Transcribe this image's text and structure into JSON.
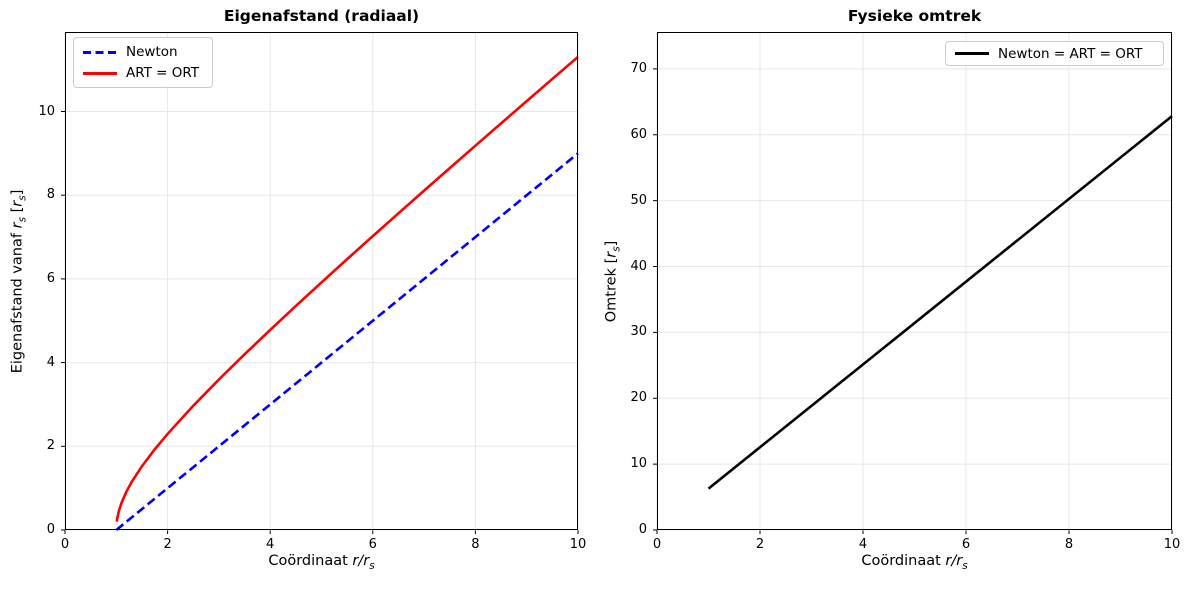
{
  "figure": {
    "background": "#ffffff",
    "spine_color": "#000000",
    "grid_color": "#e8e8e8",
    "line_width": 2.6
  },
  "chart_data": [
    {
      "type": "line",
      "title": "Eigenafstand (radiaal)",
      "xlabel": "Coördinaat r/rs",
      "ylabel": "Eigenafstand vanaf rs [rs]",
      "xlabel_rich": [
        {
          "t": "Coördinaat ",
          "s": "plain"
        },
        {
          "t": "r/r",
          "s": "italic"
        },
        {
          "t": "s",
          "s": "sub"
        }
      ],
      "ylabel_rich": [
        {
          "t": "Eigenafstand vanaf ",
          "s": "plain"
        },
        {
          "t": "r",
          "s": "italic"
        },
        {
          "t": "s",
          "s": "sub"
        },
        {
          "t": " [",
          "s": "plain"
        },
        {
          "t": "r",
          "s": "italic"
        },
        {
          "t": "s",
          "s": "sub"
        },
        {
          "t": "]",
          "s": "plain"
        }
      ],
      "xlim": [
        0,
        10
      ],
      "ylim": [
        0,
        11.9
      ],
      "xticks": [
        0,
        2,
        4,
        6,
        8,
        10
      ],
      "yticks": [
        0,
        2,
        4,
        6,
        8,
        10
      ],
      "grid": true,
      "legend": {
        "position": "upper-left",
        "entries": [
          {
            "label": "Newton",
            "color": "#0000ff",
            "dash": true
          },
          {
            "label": "ART = ORT",
            "color": "#ff0000",
            "dash": false
          }
        ]
      },
      "series": [
        {
          "name": "Newton",
          "color": "#0000ff",
          "dash": true,
          "points": [
            [
              1,
              0
            ],
            [
              10,
              9
            ]
          ]
        },
        {
          "name": "ART = ORT",
          "color": "#ff0000",
          "dash": false,
          "points": [
            [
              1.01,
              0.2
            ],
            [
              1.02,
              0.284
            ],
            [
              1.05,
              0.451
            ],
            [
              1.1,
              0.643
            ],
            [
              1.2,
              0.924
            ],
            [
              1.3,
              1.148
            ],
            [
              1.5,
              1.524
            ],
            [
              1.75,
              1.929
            ],
            [
              2,
              2.296
            ],
            [
              2.5,
              2.968
            ],
            [
              3,
              3.596
            ],
            [
              3.5,
              4.197
            ],
            [
              4,
              4.781
            ],
            [
              4.5,
              5.353
            ],
            [
              5,
              5.916
            ],
            [
              5.5,
              6.472
            ],
            [
              6,
              7.022
            ],
            [
              6.5,
              7.567
            ],
            [
              7,
              8.109
            ],
            [
              7.5,
              8.648
            ],
            [
              8,
              9.183
            ],
            [
              8.5,
              9.717
            ],
            [
              9,
              10.248
            ],
            [
              9.5,
              10.778
            ],
            [
              10,
              11.305
            ]
          ]
        }
      ]
    },
    {
      "type": "line",
      "title": "Fysieke omtrek",
      "xlabel": "Coördinaat r/rs",
      "ylabel": "Omtrek [rs]",
      "xlabel_rich": [
        {
          "t": "Coördinaat ",
          "s": "plain"
        },
        {
          "t": "r/r",
          "s": "italic"
        },
        {
          "t": "s",
          "s": "sub"
        }
      ],
      "ylabel_rich": [
        {
          "t": "Omtrek [",
          "s": "plain"
        },
        {
          "t": "r",
          "s": "italic"
        },
        {
          "t": "s",
          "s": "sub"
        },
        {
          "t": "]",
          "s": "plain"
        }
      ],
      "xlim": [
        0,
        10
      ],
      "ylim": [
        0,
        75.6
      ],
      "xticks": [
        0,
        2,
        4,
        6,
        8,
        10
      ],
      "yticks": [
        0,
        10,
        20,
        30,
        40,
        50,
        60,
        70
      ],
      "grid": true,
      "legend": {
        "position": "upper-right",
        "entries": [
          {
            "label": "Newton = ART = ORT",
            "color": "#000000",
            "dash": false
          }
        ]
      },
      "series": [
        {
          "name": "Newton = ART = ORT",
          "color": "#000000",
          "dash": false,
          "points": [
            [
              1,
              6.283
            ],
            [
              10,
              62.832
            ]
          ]
        }
      ]
    }
  ]
}
